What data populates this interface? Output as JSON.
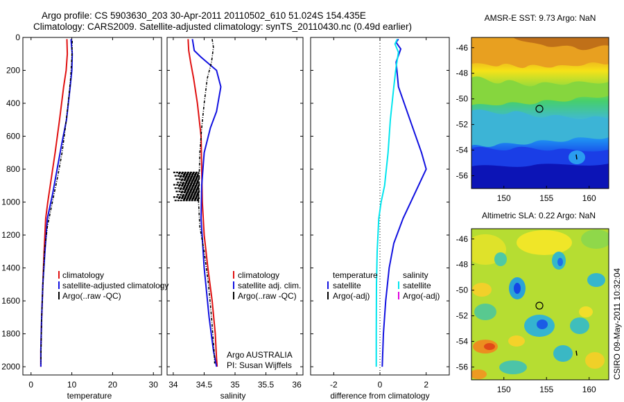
{
  "header": {
    "line1": "Argo profile: CS 5903630_203 30-Apr-2011 20110502_610 51.024S 154.435E",
    "line2": "Climatology: CARS2009. Satellite-adjusted climatology: synTS_20110430.nc (0.49d earlier)"
  },
  "colors": {
    "climatology": "#e01010",
    "satellite": "#1010e0",
    "argo": "#000000",
    "salinity_satellite": "#00e5ee",
    "salinity_argo_adj": "#e000e0"
  },
  "credit": "CSIRO 09-May-2011 10:32:04",
  "chart_data": [
    {
      "type": "line",
      "xlabel": "temperature",
      "ylabel": "",
      "xlim": [
        -2,
        32
      ],
      "ylim": [
        2050,
        0
      ],
      "xticks": [
        0,
        10,
        20,
        30
      ],
      "yticks": [
        0,
        200,
        400,
        600,
        800,
        1000,
        1200,
        1400,
        1600,
        1800,
        2000
      ],
      "legend": {
        "position": "lower-center",
        "entries": [
          "climatology",
          "satellite-adjusted climatology",
          "Argo(..raw -QC)"
        ]
      },
      "series": [
        {
          "name": "climatology",
          "color": "#e01010",
          "style": "solid",
          "x": [
            8.8,
            8.9,
            8.6,
            8.0,
            7.0,
            5.9,
            5.0,
            4.1,
            3.6,
            3.2,
            2.9,
            2.6,
            2.4,
            2.4
          ],
          "y": [
            10,
            100,
            200,
            300,
            500,
            700,
            850,
            1000,
            1100,
            1300,
            1500,
            1700,
            1900,
            2000
          ]
        },
        {
          "name": "satellite-adjusted climatology",
          "color": "#1010e0",
          "style": "solid",
          "x": [
            9.8,
            10.1,
            10.0,
            9.6,
            8.7,
            7.5,
            6.4,
            5.3,
            4.0,
            3.4,
            2.9,
            2.6,
            2.4,
            2.4
          ],
          "y": [
            10,
            100,
            200,
            300,
            500,
            650,
            800,
            950,
            1100,
            1300,
            1500,
            1700,
            1900,
            2000
          ]
        },
        {
          "name": "Argo(..raw -QC)",
          "color": "#000000",
          "style": "dashdot",
          "x": [
            10.1,
            10.0,
            9.7,
            9.1,
            8.4,
            7.6,
            6.5,
            5.4,
            4.0,
            3.3,
            2.9,
            2.6,
            2.4
          ],
          "y": [
            20,
            120,
            250,
            400,
            550,
            700,
            850,
            980,
            1150,
            1300,
            1500,
            1700,
            1980
          ]
        }
      ]
    },
    {
      "type": "line",
      "xlabel": "salinity",
      "ylabel": "",
      "xlim": [
        33.9,
        36.1
      ],
      "ylim": [
        2050,
        0
      ],
      "xticks": [
        34,
        34.5,
        35,
        35.5,
        36
      ],
      "legend": {
        "position": "lower-center",
        "entries": [
          "climatology",
          "satellite adj. clim.",
          "Argo(..raw -QC)"
        ]
      },
      "annotation": [
        "Argo AUSTRALIA",
        "PI: Susan Wijffels"
      ],
      "series": [
        {
          "name": "climatology",
          "color": "#e01010",
          "style": "solid",
          "x": [
            34.24,
            34.25,
            34.28,
            34.33,
            34.39,
            34.45,
            34.46,
            34.47,
            34.5,
            34.56,
            34.63,
            34.68,
            34.7,
            34.71
          ],
          "y": [
            10,
            80,
            150,
            250,
            400,
            600,
            800,
            1000,
            1200,
            1400,
            1600,
            1800,
            1950,
            2000
          ]
        },
        {
          "name": "satellite adj. clim.",
          "color": "#1010e0",
          "style": "solid",
          "x": [
            34.31,
            34.34,
            34.45,
            34.7,
            34.77,
            34.7,
            34.6,
            34.5,
            34.46,
            34.45,
            34.5,
            34.58,
            34.65,
            34.7
          ],
          "y": [
            10,
            80,
            120,
            200,
            300,
            450,
            550,
            700,
            900,
            1100,
            1400,
            1700,
            1900,
            2000
          ]
        },
        {
          "name": "Argo(..raw -QC)",
          "color": "#000000",
          "style": "dashdot",
          "x": [
            34.63,
            34.65,
            34.62,
            34.55,
            34.5,
            34.46,
            34.43,
            34.42,
            34.41,
            34.43,
            34.5,
            34.57,
            34.62,
            34.66,
            34.67
          ],
          "y": [
            10,
            60,
            150,
            250,
            400,
            550,
            700,
            850,
            1000,
            1150,
            1300,
            1500,
            1700,
            1900,
            1980
          ]
        }
      ],
      "scatter_note": "Argo raw spikes to ~34.0 between 820 and 980 dbar",
      "spikes": {
        "x_low": 34.0,
        "depth_range": [
          820,
          990
        ]
      }
    },
    {
      "type": "line",
      "xlabel": "difference from climatology",
      "ylabel": "",
      "xlim": [
        -3,
        3
      ],
      "ylim": [
        2050,
        0
      ],
      "xticks": [
        -2,
        0,
        2
      ],
      "zero_line": "dotted",
      "legend": {
        "position": "lower-center",
        "left_title": "temperature",
        "right_title": "salinity",
        "left_entries": [
          "satellite",
          "Argo(-adj)"
        ],
        "right_entries": [
          "satellite",
          "Argo(-adj)"
        ]
      },
      "series": [
        {
          "name": "temperature satellite",
          "color": "#1010e0",
          "style": "solid",
          "x": [
            0.8,
            0.7,
            0.9,
            0.7,
            0.8,
            1.3,
            1.8,
            2.0,
            1.5,
            1.0,
            0.6,
            0.4,
            0.25,
            0.15,
            0.1
          ],
          "y": [
            10,
            30,
            70,
            150,
            300,
            500,
            700,
            800,
            950,
            1100,
            1250,
            1400,
            1600,
            1800,
            2000
          ]
        },
        {
          "name": "temperature Argo(-adj)",
          "color": "#000000",
          "style": "solid",
          "x": [],
          "y": []
        },
        {
          "name": "salinity satellite",
          "color": "#00e5ee",
          "style": "solid",
          "x": [
            0.75,
            0.65,
            0.8,
            0.7,
            0.6,
            0.45,
            0.35,
            0.2,
            0.05,
            -0.05,
            -0.12,
            -0.15,
            -0.16,
            -0.16
          ],
          "y": [
            10,
            40,
            90,
            180,
            300,
            500,
            700,
            900,
            1000,
            1100,
            1300,
            1500,
            1800,
            2000
          ]
        },
        {
          "name": "salinity Argo(-adj)",
          "color": "#e000e0",
          "style": "solid",
          "x": [],
          "y": []
        }
      ]
    },
    {
      "type": "heatmap",
      "title": "AMSR-E SST: 9.73 Argo: NaN",
      "xlim": [
        146.2,
        162.3
      ],
      "ylim": [
        -57,
        -45.2
      ],
      "xticks": [
        150,
        155,
        160
      ],
      "yticks": [
        -46,
        -48,
        -50,
        -52,
        -54,
        -56
      ],
      "marker_positions": [
        {
          "lon": 154.435,
          "lat": -51.024
        }
      ]
    },
    {
      "type": "heatmap",
      "title": "Altimetric SLA: 0.22 Argo: NaN",
      "xlim": [
        146.2,
        162.3
      ],
      "ylim": [
        -57,
        -45.2
      ],
      "xticks": [
        150,
        155,
        160
      ],
      "yticks": [
        -46,
        -48,
        -50,
        -52,
        -54,
        -56
      ],
      "marker_positions": [
        {
          "lon": 154.435,
          "lat": -51.024
        }
      ]
    }
  ]
}
